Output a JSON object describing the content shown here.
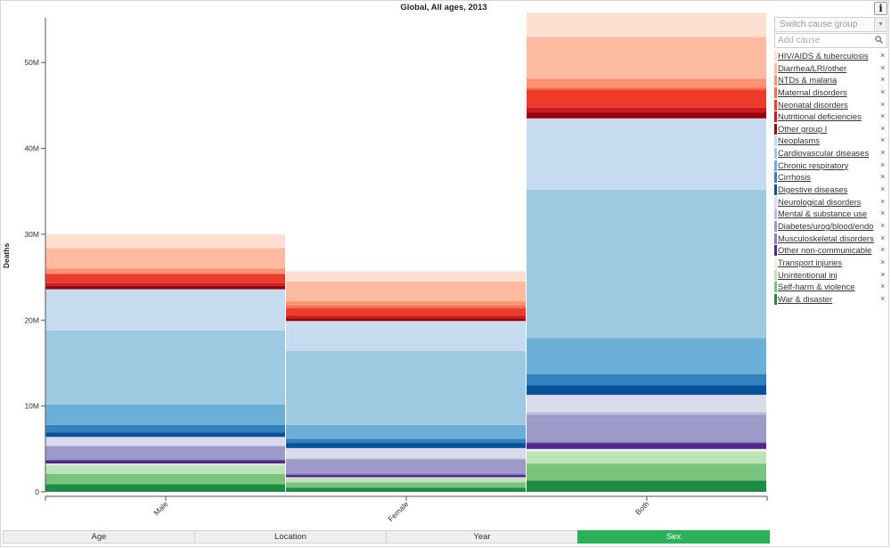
{
  "chart_data": {
    "type": "bar",
    "stacked": true,
    "title": "Global, All ages, 2013",
    "xlabel": "",
    "ylabel": "Deaths",
    "ylim": [
      0,
      55000000
    ],
    "yticks": [
      0,
      10000000,
      20000000,
      30000000,
      40000000,
      50000000
    ],
    "ytick_labels": [
      "0",
      "10M",
      "20M",
      "30M",
      "40M",
      "50M"
    ],
    "categories": [
      "Male",
      "Female",
      "Both"
    ],
    "series": [
      {
        "name": "War & disaster",
        "color": "#1d8c46",
        "values": [
          900000,
          500000,
          1300000
        ]
      },
      {
        "name": "Self-harm & violence",
        "color": "#78c47c",
        "values": [
          1200000,
          600000,
          2000000
        ]
      },
      {
        "name": "Unintentional inj",
        "color": "#bde3b6",
        "values": [
          1000000,
          500000,
          1400000
        ]
      },
      {
        "name": "Transport injuries",
        "color": "#e3f3dd",
        "values": [
          200000,
          100000,
          300000
        ]
      },
      {
        "name": "Other non-communicable",
        "color": "#54278f",
        "values": [
          400000,
          300000,
          700000
        ]
      },
      {
        "name": "Musculoskeletal disorders",
        "color": "#8c7fbe",
        "values": [
          100000,
          200000,
          200000
        ]
      },
      {
        "name": "Diabetes/urog/blood/endo",
        "color": "#9e9ac8",
        "values": [
          1500000,
          1600000,
          3100000
        ]
      },
      {
        "name": "Mental & substance use",
        "color": "#bcbddc",
        "values": [
          100000,
          100000,
          300000
        ]
      },
      {
        "name": "Neurological disorders",
        "color": "#dadaeb",
        "values": [
          1000000,
          1200000,
          2000000
        ]
      },
      {
        "name": "Digestive diseases",
        "color": "#08519c",
        "values": [
          500000,
          600000,
          1100000
        ]
      },
      {
        "name": "Cirrhosis",
        "color": "#3182bd",
        "values": [
          900000,
          500000,
          1300000
        ]
      },
      {
        "name": "Chronic respiratory",
        "color": "#6baed6",
        "values": [
          2400000,
          1600000,
          4200000
        ]
      },
      {
        "name": "Cardiovascular diseases",
        "color": "#9ecae1",
        "values": [
          8600000,
          8600000,
          17300000
        ]
      },
      {
        "name": "Neoplasms",
        "color": "#c6dbef",
        "values": [
          4800000,
          3500000,
          8300000
        ]
      },
      {
        "name": "Other group I",
        "color": "#99000d",
        "values": [
          400000,
          300000,
          700000
        ]
      },
      {
        "name": "Nutritional deficiencies",
        "color": "#cb181d",
        "values": [
          300000,
          300000,
          600000
        ]
      },
      {
        "name": "Neonatal disorders",
        "color": "#ef3b2c",
        "values": [
          1100000,
          900000,
          2000000
        ]
      },
      {
        "name": "Maternal disorders",
        "color": "#fb6a4a",
        "values": [
          0,
          300000,
          300000
        ]
      },
      {
        "name": "NTDs & malaria",
        "color": "#fc9272",
        "values": [
          600000,
          500000,
          1000000
        ]
      },
      {
        "name": "Diarrhea/LRI/other",
        "color": "#fcbba1",
        "values": [
          2400000,
          2300000,
          4900000
        ]
      },
      {
        "name": "HIV/AIDS & tuberculosis",
        "color": "#fee0d2",
        "values": [
          1600000,
          1200000,
          2800000
        ]
      }
    ]
  },
  "legend": {
    "items": [
      {
        "label": "HIV/AIDS & tuberculosis",
        "color": "#fee0d2"
      },
      {
        "label": "Diarrhea/LRI/other",
        "color": "#fcbba1"
      },
      {
        "label": "NTDs & malaria",
        "color": "#fc9272"
      },
      {
        "label": "Maternal disorders",
        "color": "#fb6a4a"
      },
      {
        "label": "Neonatal disorders",
        "color": "#ef3b2c"
      },
      {
        "label": "Nutritional deficiencies",
        "color": "#cb181d"
      },
      {
        "label": "Other group I",
        "color": "#99000d"
      },
      {
        "label": "Neoplasms",
        "color": "#c6dbef"
      },
      {
        "label": "Cardiovascular diseases",
        "color": "#9ecae1"
      },
      {
        "label": "Chronic respiratory",
        "color": "#6baed6"
      },
      {
        "label": "Cirrhosis",
        "color": "#3182bd"
      },
      {
        "label": "Digestive diseases",
        "color": "#08519c"
      },
      {
        "label": "Neurological disorders",
        "color": "#dadaeb"
      },
      {
        "label": "Mental & substance use",
        "color": "#bcbddc"
      },
      {
        "label": "Diabetes/urog/blood/endo",
        "color": "#9e9ac8"
      },
      {
        "label": "Musculoskeletal disorders",
        "color": "#8c7fbe"
      },
      {
        "label": "Other non-communicable",
        "color": "#54278f"
      },
      {
        "label": "Transport injuries",
        "color": "#e3f3dd"
      },
      {
        "label": "Unintentional inj",
        "color": "#bde3b6"
      },
      {
        "label": "Self-harm & violence",
        "color": "#78c47c"
      },
      {
        "label": "War & disaster",
        "color": "#1d8c46"
      }
    ],
    "remove_glyph": "×"
  },
  "controls": {
    "info_label": "i",
    "switch_placeholder": "Switch cause group",
    "switch_caret": "▼",
    "add_cause_placeholder": "Add cause"
  },
  "tabs": [
    {
      "label": "Age",
      "active": false
    },
    {
      "label": "Location",
      "active": false
    },
    {
      "label": "Year",
      "active": false
    },
    {
      "label": "Sex",
      "active": true
    }
  ],
  "colors": {
    "active_tab": "#2ab15a",
    "axis": "#555555"
  }
}
